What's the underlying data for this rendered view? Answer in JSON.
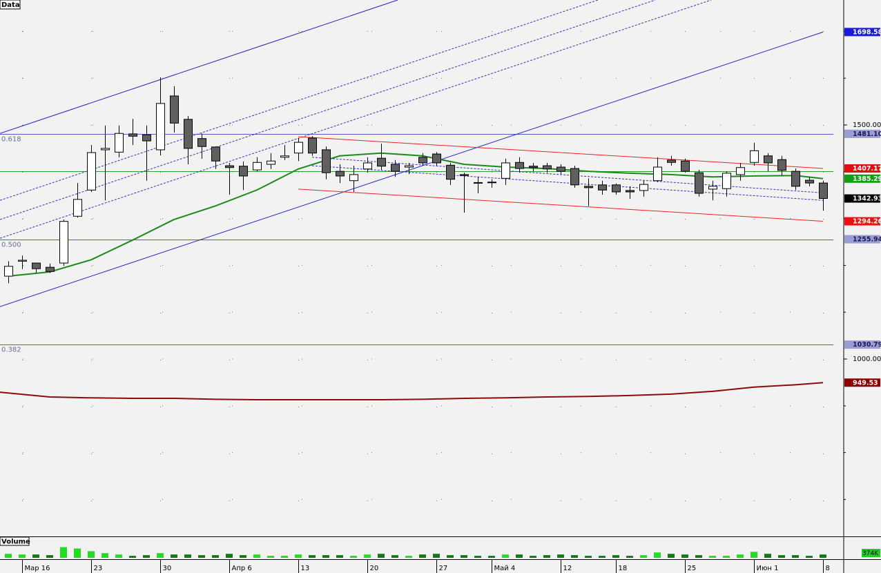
{
  "chart_data": {
    "type": "candlestick",
    "title": "Data",
    "categories": [
      null,
      "Мар 16",
      null,
      null,
      null,
      null,
      "23",
      null,
      null,
      null,
      null,
      "30",
      null,
      null,
      null,
      null,
      "Апр 6",
      null,
      null,
      null,
      null,
      "13",
      null,
      null,
      null,
      null,
      "20",
      null,
      null,
      null,
      null,
      "27",
      null,
      null,
      null,
      "Май 4",
      null,
      null,
      null,
      null,
      "12",
      null,
      null,
      null,
      "18",
      null,
      null,
      null,
      null,
      "25",
      null,
      null,
      null,
      null,
      "Июн 1",
      null,
      null,
      null,
      null,
      "8"
    ],
    "open": [
      1177,
      1209,
      1205,
      1196,
      1205,
      1305,
      1361,
      1447,
      1442,
      1481,
      1479,
      1447,
      1562,
      1512,
      1471,
      1453,
      1413,
      1412,
      1404,
      1416,
      1431,
      1440,
      1472,
      1447,
      1401,
      1381,
      1406,
      1429,
      1416,
      1410,
      1431,
      1438,
      1414,
      1394,
      1377,
      1378,
      1386,
      1420,
      1412,
      1413,
      1410,
      1407,
      1369,
      1372,
      1372,
      1360,
      1360,
      1381,
      1425,
      1423,
      1398,
      1363,
      1364,
      1394,
      1420,
      1434,
      1426,
      1401,
      1382,
      1376
    ],
    "high": [
      1209,
      1221,
      1206,
      1204,
      1298,
      1376,
      1457,
      1499,
      1499,
      1513,
      1499,
      1602,
      1583,
      1519,
      1482,
      1454,
      1419,
      1422,
      1431,
      1440,
      1457,
      1472,
      1476,
      1454,
      1416,
      1413,
      1431,
      1460,
      1425,
      1419,
      1440,
      1442,
      1419,
      1398,
      1389,
      1384,
      1428,
      1431,
      1419,
      1419,
      1416,
      1413,
      1386,
      1381,
      1375,
      1369,
      1381,
      1431,
      1434,
      1428,
      1404,
      1381,
      1401,
      1419,
      1462,
      1440,
      1434,
      1407,
      1389,
      1381
    ],
    "low": [
      1162,
      1192,
      1184,
      1184,
      1199,
      1302,
      1357,
      1339,
      1431,
      1457,
      1381,
      1435,
      1484,
      1416,
      1428,
      1406,
      1351,
      1361,
      1401,
      1406,
      1425,
      1423,
      1434,
      1384,
      1376,
      1357,
      1398,
      1404,
      1389,
      1395,
      1413,
      1413,
      1372,
      1313,
      1354,
      1366,
      1372,
      1398,
      1401,
      1398,
      1395,
      1366,
      1327,
      1351,
      1351,
      1342,
      1347,
      1378,
      1413,
      1398,
      1347,
      1339,
      1347,
      1381,
      1413,
      1401,
      1391,
      1361,
      1369,
      1317
    ],
    "close": [
      1198,
      1211,
      1193,
      1187,
      1294,
      1341,
      1441,
      1450,
      1482,
      1476,
      1466,
      1546,
      1504,
      1450,
      1454,
      1423,
      1409,
      1391,
      1420,
      1423,
      1434,
      1463,
      1440,
      1398,
      1391,
      1394,
      1419,
      1412,
      1401,
      1413,
      1419,
      1419,
      1384,
      1392,
      1376,
      1377,
      1419,
      1407,
      1409,
      1406,
      1401,
      1372,
      1366,
      1361,
      1357,
      1357,
      1373,
      1410,
      1420,
      1401,
      1354,
      1369,
      1397,
      1409,
      1445,
      1419,
      1403,
      1369,
      1376,
      1342.93
    ],
    "up_color": "#ffffff",
    "down_color": "#606060",
    "ylim": [
      621,
      1767
    ],
    "yticks": [
      {
        "value": 1500,
        "label": "1500.00"
      },
      {
        "value": 1000,
        "label": "1000.00"
      }
    ],
    "minor_yticks": [
      700,
      800,
      900,
      1100,
      1200,
      1300,
      1400,
      1600,
      1700
    ],
    "grid": true,
    "lines": [
      {
        "color": "#2020c0",
        "dashed": false,
        "width": 1,
        "x": [
          -0.6,
          28.2
        ],
        "values": [
          1482,
          1767
        ]
      },
      {
        "color": "#2020c0",
        "dashed": false,
        "width": 1,
        "x": [
          -0.6,
          59
        ],
        "values": [
          1112,
          1698.58
        ]
      },
      {
        "color": "#3030c8",
        "dashed": true,
        "width": 1,
        "x": [
          -0.6,
          42.7
        ],
        "values": [
          1339,
          1767
        ]
      },
      {
        "color": "#3030c8",
        "dashed": true,
        "width": 1,
        "x": [
          -0.6,
          46.85
        ],
        "values": [
          1298,
          1767
        ]
      },
      {
        "color": "#3030c8",
        "dashed": true,
        "width": 1,
        "x": [
          -0.6,
          50.9
        ],
        "values": [
          1258,
          1767
        ]
      },
      {
        "color": "#ee2020",
        "dashed": false,
        "width": 1,
        "x": [
          21,
          59
        ],
        "values": [
          1475,
          1407.17
        ]
      },
      {
        "color": "#ee2020",
        "dashed": false,
        "width": 1,
        "x": [
          21,
          59
        ],
        "values": [
          1363,
          1294.26
        ]
      },
      {
        "color": "#3030c8",
        "dashed": true,
        "width": 1,
        "x": [
          22,
          59
        ],
        "values": [
          1431,
          1355
        ]
      },
      {
        "color": "#3030c8",
        "dashed": true,
        "width": 1,
        "x": [
          22,
          59
        ],
        "values": [
          1413,
          1339
        ]
      },
      {
        "color": "#1a8a1a",
        "dashed": false,
        "width": 2,
        "x": [
          0,
          3,
          6,
          9,
          12,
          15,
          18,
          21,
          24,
          27,
          30,
          33,
          36,
          39,
          42,
          45,
          48,
          51,
          54,
          57,
          59
        ],
        "values": [
          1177,
          1186,
          1212,
          1254,
          1298,
          1327,
          1361,
          1406,
          1434,
          1440,
          1434,
          1416,
          1410,
          1407,
          1401,
          1397,
          1394,
          1389,
          1391,
          1392,
          1385.29
        ]
      },
      {
        "color": "#8b0a0a",
        "dashed": false,
        "width": 2,
        "x": [
          -0.6,
          3,
          6,
          9,
          12,
          15,
          18,
          21,
          24,
          27,
          30,
          33,
          36,
          39,
          42,
          45,
          48,
          51,
          54,
          57,
          59
        ],
        "values": [
          929,
          919,
          917,
          916,
          916,
          914,
          913,
          913,
          913,
          913,
          914,
          916,
          917,
          919,
          920,
          922,
          925,
          931,
          940,
          945,
          949.53
        ]
      }
    ],
    "levels": [
      {
        "price": 1481.1,
        "ratio": 0.618,
        "color": "#5858c8"
      },
      {
        "price": 1255.94,
        "ratio": {
          "value": 0.5,
          "label": "0.500"
        },
        "color": "#5858c8"
      },
      {
        "price": 1030.79,
        "ratio": 0.382,
        "color": "#5858c8"
      },
      {
        "price": 1401,
        "color": "#2a9a2a"
      }
    ],
    "price_markers": [
      {
        "price": 1698.58,
        "color": "#1a1ad8",
        "text_color": "#ffffff"
      },
      {
        "price": {
          "value": 1481.1,
          "label": "1481.10"
        },
        "color": "#9c9cd4",
        "text_color": "#1a1a50"
      },
      {
        "price": 1407.17,
        "color": "#e01010",
        "text_color": "#ffffff"
      },
      {
        "price": 1385.29,
        "color": "#10a010",
        "text_color": "#ffffff"
      },
      {
        "price": 1342.93,
        "color": "#000000",
        "text_color": "#ffffff"
      },
      {
        "price": 1294.26,
        "color": "#ee1010",
        "text_color": "#ffffff"
      },
      {
        "price": 1255.94,
        "color": "#9c9cd4",
        "text_color": "#1a1a50"
      },
      {
        "price": 1030.79,
        "color": "#9c9cd4",
        "text_color": "#1a1a50"
      },
      {
        "price": 949.53,
        "color": "#8b0000",
        "text_color": "#ffffff"
      }
    ],
    "volume": {
      "title": "Volume",
      "values": [
        450000,
        375000,
        375000,
        300000,
        1200000,
        1050000,
        750000,
        525000,
        375000,
        225000,
        300000,
        525000,
        375000,
        375000,
        300000,
        300000,
        450000,
        300000,
        375000,
        225000,
        225000,
        375000,
        300000,
        300000,
        300000,
        225000,
        375000,
        450000,
        300000,
        225000,
        375000,
        450000,
        300000,
        300000,
        225000,
        225000,
        375000,
        375000,
        225000,
        300000,
        375000,
        300000,
        225000,
        225000,
        300000,
        225000,
        300000,
        600000,
        450000,
        375000,
        300000,
        225000,
        225000,
        375000,
        675000,
        450000,
        300000,
        300000,
        225000,
        374000
      ],
      "value_labels": [
        null,
        null,
        null,
        null,
        null,
        null,
        null,
        null,
        null,
        null,
        null,
        null,
        null,
        null,
        null,
        null,
        null,
        null,
        null,
        null,
        null,
        null,
        null,
        null,
        null,
        null,
        null,
        null,
        null,
        null,
        null,
        null,
        null,
        null,
        null,
        null,
        null,
        null,
        null,
        null,
        null,
        null,
        null,
        null,
        null,
        null,
        null,
        null,
        null,
        null,
        null,
        null,
        null,
        null,
        null,
        null,
        null,
        null,
        null,
        "374K"
      ],
      "ylim": [
        0,
        2250000
      ],
      "up_color": "#22dd22",
      "down_color": "#127a12",
      "label_color": "#22cc22"
    }
  }
}
